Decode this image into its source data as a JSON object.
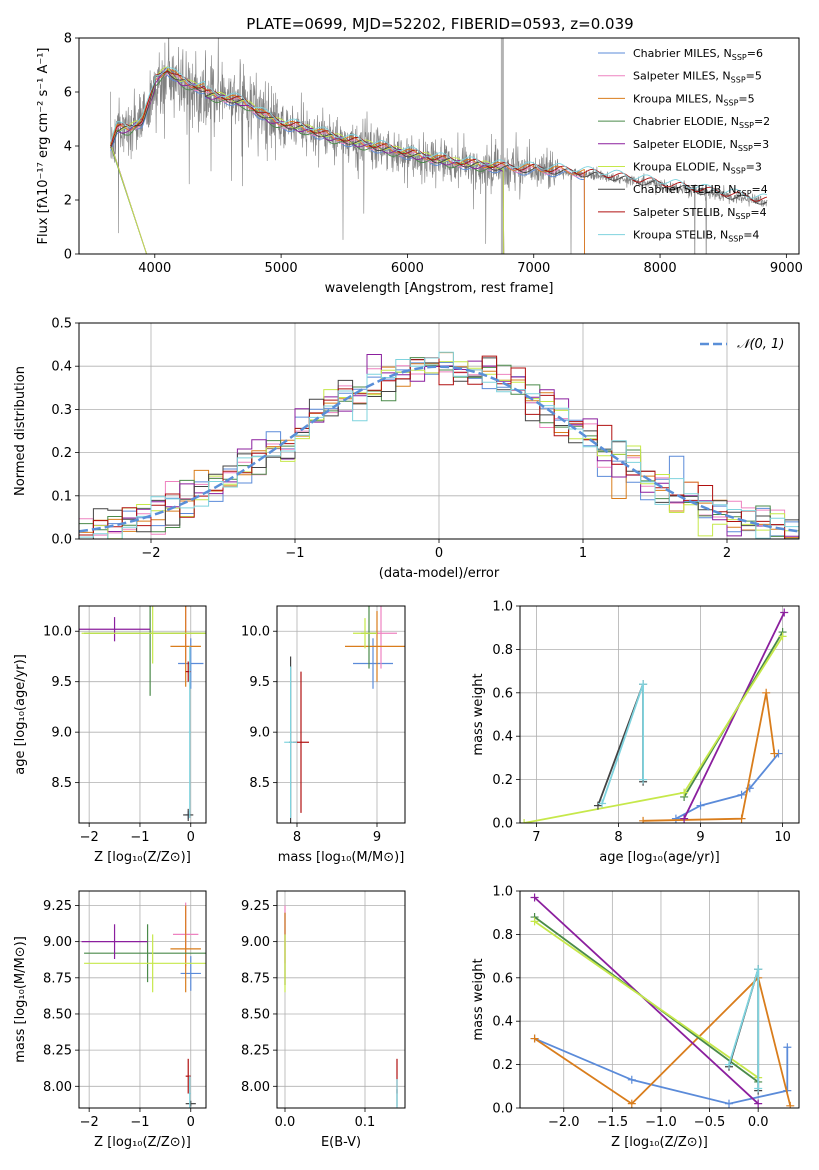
{
  "figure_title": "PLATE=0699, MJD=52202, FIBERID=0593, z=0.039",
  "colors": {
    "data_spectrum": "#808080",
    "masked": "#b3b3b3",
    "axes": "#000000",
    "grid": "#b0b0b0",
    "normal_curve": "#5a8fd8"
  },
  "chart_data": [
    {
      "id": "spectrum",
      "type": "line",
      "title": "PLATE=0699, MJD=52202, FIBERID=0593, z=0.039",
      "xlabel": "wavelength [Angstrom, rest frame]",
      "ylabel": "Flux [fλ10⁻¹⁷ erg cm⁻² s⁻¹ A⁻¹]",
      "xlim": [
        3400,
        9100
      ],
      "ylim": [
        0,
        8
      ],
      "xticks": [
        4000,
        5000,
        6000,
        7000,
        8000,
        9000
      ],
      "yticks": [
        0,
        2,
        4,
        6,
        8
      ],
      "grid": false,
      "legend_position": "top-right",
      "data_continuum": {
        "x": [
          3650,
          3700,
          3800,
          3900,
          3950,
          4000,
          4100,
          4200,
          4300,
          4400,
          4500,
          4600,
          4700,
          4800,
          4900,
          5000,
          5200,
          5400,
          5600,
          5800,
          6000,
          6200,
          6400,
          6600,
          6800,
          7000,
          7200,
          7400,
          7600,
          7800,
          8000,
          8200,
          8400,
          8600,
          8850
        ],
        "y": [
          4.0,
          4.6,
          4.6,
          4.9,
          5.5,
          6.2,
          6.6,
          6.2,
          6.0,
          5.9,
          5.8,
          5.7,
          5.6,
          5.3,
          5.0,
          4.8,
          4.6,
          4.3,
          4.1,
          3.9,
          3.7,
          3.5,
          3.35,
          3.25,
          3.15,
          3.1,
          3.05,
          2.95,
          2.85,
          2.7,
          2.55,
          2.4,
          2.25,
          2.1,
          1.9
        ]
      },
      "series": [
        {
          "name": "Chabrier MILES, N_SSP=6",
          "color": "#5b8bd9",
          "nssp": 6,
          "family": "MILES"
        },
        {
          "name": "Salpeter MILES, N_SSP=5",
          "color": "#ee82c0",
          "nssp": 5,
          "family": "MILES"
        },
        {
          "name": "Kroupa MILES, N_SSP=5",
          "color": "#d97d1c",
          "nssp": 5,
          "family": "MILES"
        },
        {
          "name": "Chabrier ELODIE, N_SSP=2",
          "color": "#4a8a4a",
          "nssp": 2,
          "family": "ELODIE"
        },
        {
          "name": "Salpeter ELODIE, N_SSP=3",
          "color": "#8b1f9e",
          "nssp": 3,
          "family": "ELODIE"
        },
        {
          "name": "Kroupa ELODIE, N_SSP=3",
          "color": "#c6e84a",
          "nssp": 3,
          "family": "ELODIE"
        },
        {
          "name": "Chabrier STELIB, N_SSP=4",
          "color": "#444444",
          "nssp": 4,
          "family": "STELIB"
        },
        {
          "name": "Salpeter STELIB, N_SSP=4",
          "color": "#b01010",
          "nssp": 4,
          "family": "STELIB"
        },
        {
          "name": "Kroupa STELIB, N_SSP=4",
          "color": "#7fd3de",
          "nssp": 4,
          "family": "STELIB"
        }
      ],
      "legend_labels": [
        {
          "model": "Chabrier MILES, N",
          "sub": "SSP",
          "tail": "=6"
        },
        {
          "model": "Salpeter MILES, N",
          "sub": "SSP",
          "tail": "=5"
        },
        {
          "model": "Kroupa MILES, N",
          "sub": "SSP",
          "tail": "=5"
        },
        {
          "model": "Chabrier ELODIE, N",
          "sub": "SSP",
          "tail": "=2"
        },
        {
          "model": "Salpeter ELODIE, N",
          "sub": "SSP",
          "tail": "=3"
        },
        {
          "model": "Kroupa ELODIE, N",
          "sub": "SSP",
          "tail": "=3"
        },
        {
          "model": "Chabrier STELIB, N",
          "sub": "SSP",
          "tail": "=4"
        },
        {
          "model": "Salpeter STELIB, N",
          "sub": "SSP",
          "tail": "=4"
        },
        {
          "model": "Kroupa STELIB, N",
          "sub": "SSP",
          "tail": "=4"
        }
      ]
    },
    {
      "id": "residuals",
      "type": "bar",
      "xlabel": "(data-model)/error",
      "ylabel": "Normed distribution",
      "xlim": [
        -2.5,
        2.5
      ],
      "ylim": [
        0,
        0.5
      ],
      "xticks": [
        -2,
        -1,
        0,
        1,
        2
      ],
      "yticks": [
        0.0,
        0.1,
        0.2,
        0.3,
        0.4,
        0.5
      ],
      "grid": true,
      "legend_position": "top-right",
      "legend_label": "𝒩(0, 1)",
      "bin_width": 0.1,
      "normal": {
        "mean": 0,
        "sigma": 1
      }
    },
    {
      "id": "age-vs-Z",
      "type": "scatter",
      "xlabel": "Z [log₁₀(Z/Z⊙)]",
      "ylabel": "age  [log₁₀(age/yr)]",
      "xlim": [
        -2.2,
        0.3
      ],
      "ylim": [
        8.1,
        10.25
      ],
      "xticks": [
        -2,
        -1,
        0
      ],
      "yticks": [
        8.5,
        9.0,
        9.5,
        10.0
      ],
      "grid": true,
      "points": [
        {
          "series": 0,
          "x": 0.0,
          "y": 9.68,
          "xerr": 0.25,
          "yerr": 0.25
        },
        {
          "series": 0,
          "x": -0.05,
          "y": 8.18,
          "xerr": 0.05,
          "yerr": 0.04
        },
        {
          "series": 1,
          "x": -0.1,
          "y": 9.98,
          "xerr": 0.3,
          "yerr": 0.28
        },
        {
          "series": 2,
          "x": -0.1,
          "y": 9.85,
          "xerr": 0.3,
          "yerr": 0.4
        },
        {
          "series": 3,
          "x": -0.8,
          "y": 9.98,
          "xerr": 1.3,
          "yerr": 0.62
        },
        {
          "series": 4,
          "x": -1.5,
          "y": 10.02,
          "xerr": 0.7,
          "yerr": 0.12
        },
        {
          "series": 5,
          "x": -0.75,
          "y": 9.98,
          "xerr": 1.4,
          "yerr": 0.3
        },
        {
          "series": 6,
          "x": -0.05,
          "y": 8.18,
          "xerr": 0.1,
          "yerr": 0.06
        },
        {
          "series": 7,
          "x": -0.05,
          "y": 9.6,
          "xerr": 0.05,
          "yerr": 0.1
        },
        {
          "series": 8,
          "x": -0.02,
          "y": 9.0,
          "xerr": 0.02,
          "yerr": 0.85
        }
      ]
    },
    {
      "id": "age-vs-mass",
      "type": "scatter",
      "xlabel": "mass [log₁₀(M/M⊙)]",
      "ylabel": "",
      "xlim": [
        7.75,
        9.35
      ],
      "ylim": [
        8.1,
        10.25
      ],
      "xticks": [
        8,
        9
      ],
      "yticks": [
        8.5,
        9.0,
        9.5,
        10.0
      ],
      "grid": true,
      "points": [
        {
          "series": 0,
          "x": 8.95,
          "y": 9.68,
          "xerr": 0.25,
          "yerr": 0.25
        },
        {
          "series": 1,
          "x": 9.05,
          "y": 9.98,
          "xerr": 0.2,
          "yerr": 0.35
        },
        {
          "series": 2,
          "x": 9.0,
          "y": 9.85,
          "xerr": 0.4,
          "yerr": 0.35
        },
        {
          "series": 3,
          "x": 8.9,
          "y": 9.98,
          "xerr": 0.1,
          "yerr": 0.35
        },
        {
          "series": 5,
          "x": 8.85,
          "y": 9.98,
          "xerr": 0.15,
          "yerr": 0.15
        },
        {
          "series": 6,
          "x": 7.92,
          "y": 8.9,
          "xerr": 0.02,
          "yerr": 0.85
        },
        {
          "series": 7,
          "x": 8.05,
          "y": 8.9,
          "xerr": 0.1,
          "yerr": 0.7
        },
        {
          "series": 8,
          "x": 7.92,
          "y": 8.9,
          "xerr": 0.08,
          "yerr": 0.75
        }
      ]
    },
    {
      "id": "weight-vs-age",
      "type": "line",
      "xlabel": "age  [log₁₀(age/yr)]",
      "ylabel": "mass weight",
      "xlim": [
        6.8,
        10.2
      ],
      "ylim": [
        0,
        1
      ],
      "xticks": [
        7,
        8,
        9,
        10
      ],
      "yticks": [
        0.0,
        0.2,
        0.4,
        0.6,
        0.8,
        1.0
      ],
      "grid": true,
      "lines": [
        {
          "series": 0,
          "x": [
            8.7,
            9.0,
            9.5,
            9.6,
            9.95
          ],
          "y": [
            0.02,
            0.08,
            0.13,
            0.16,
            0.32
          ]
        },
        {
          "series": 2,
          "x": [
            8.3,
            9.5,
            9.8,
            9.9
          ],
          "y": [
            0.01,
            0.02,
            0.6,
            0.32
          ]
        },
        {
          "series": 4,
          "x": [
            8.8,
            10.02
          ],
          "y": [
            0.02,
            0.97
          ]
        },
        {
          "series": 3,
          "x": [
            8.8,
            10.0
          ],
          "y": [
            0.12,
            0.88
          ]
        },
        {
          "series": 5,
          "x": [
            6.85,
            8.8,
            10.0
          ],
          "y": [
            0.0,
            0.14,
            0.86
          ]
        },
        {
          "series": 6,
          "x": [
            7.75,
            8.3,
            8.3
          ],
          "y": [
            0.08,
            0.64,
            0.19
          ]
        },
        {
          "series": 8,
          "x": [
            7.8,
            8.3,
            8.3
          ],
          "y": [
            0.09,
            0.64,
            0.2
          ]
        }
      ]
    },
    {
      "id": "mass-vs-Z",
      "type": "scatter",
      "xlabel": "Z [log₁₀(Z/Z⊙)]",
      "ylabel": "mass [log₁₀(M/M⊙)]",
      "xlim": [
        -2.2,
        0.3
      ],
      "ylim": [
        7.85,
        9.35
      ],
      "xticks": [
        -2,
        -1,
        0
      ],
      "yticks": [
        8.0,
        8.25,
        8.5,
        8.75,
        9.0,
        9.25
      ],
      "grid": true,
      "points": [
        {
          "series": 0,
          "x": 0.0,
          "y": 8.78,
          "xerr": 0.2,
          "yerr": 0.12
        },
        {
          "series": 1,
          "x": -0.1,
          "y": 9.05,
          "xerr": 0.25,
          "yerr": 0.22
        },
        {
          "series": 2,
          "x": -0.1,
          "y": 8.95,
          "xerr": 0.3,
          "yerr": 0.3
        },
        {
          "series": 3,
          "x": -0.85,
          "y": 8.92,
          "xerr": 1.25,
          "yerr": 0.2
        },
        {
          "series": 4,
          "x": -1.5,
          "y": 9.0,
          "xerr": 0.65,
          "yerr": 0.12
        },
        {
          "series": 5,
          "x": -0.75,
          "y": 8.85,
          "xerr": 1.35,
          "yerr": 0.2
        },
        {
          "series": 6,
          "x": 0.0,
          "y": 7.88,
          "xerr": 0.1,
          "yerr": 0.02
        },
        {
          "series": 7,
          "x": -0.05,
          "y": 8.07,
          "xerr": 0.05,
          "yerr": 0.12
        },
        {
          "series": 8,
          "x": -0.02,
          "y": 7.95,
          "xerr": 0.02,
          "yerr": 0.12
        }
      ]
    },
    {
      "id": "mass-vs-EBV",
      "type": "scatter",
      "xlabel": "E(B-V)",
      "ylabel": "",
      "xlim": [
        -0.01,
        0.15
      ],
      "ylim": [
        7.85,
        9.35
      ],
      "xticks": [
        0.0,
        0.1
      ],
      "yticks": [
        8.0,
        8.25,
        8.5,
        8.75,
        9.0,
        9.25
      ],
      "grid": true,
      "points": [
        {
          "series": 0,
          "x": 0.0,
          "y": 8.95,
          "xerr": 0.0,
          "yerr": 0.25
        },
        {
          "series": 1,
          "x": 0.0,
          "y": 9.05,
          "xerr": 0.0,
          "yerr": 0.2
        },
        {
          "series": 2,
          "x": 0.0,
          "y": 8.95,
          "xerr": 0.0,
          "yerr": 0.25
        },
        {
          "series": 5,
          "x": 0.0,
          "y": 8.85,
          "xerr": 0.0,
          "yerr": 0.2
        },
        {
          "series": 6,
          "x": 0.14,
          "y": 7.92,
          "xerr": 0.0,
          "yerr": 0.06
        },
        {
          "series": 7,
          "x": 0.14,
          "y": 8.07,
          "xerr": 0.0,
          "yerr": 0.12
        },
        {
          "series": 8,
          "x": 0.14,
          "y": 7.95,
          "xerr": 0.0,
          "yerr": 0.1
        }
      ]
    },
    {
      "id": "weight-vs-Z",
      "type": "line",
      "xlabel": "Z [log₁₀(Z/Z⊙)]",
      "ylabel": "mass weight",
      "xlim": [
        -2.45,
        0.42
      ],
      "ylim": [
        0,
        1
      ],
      "xticks": [
        -2.0,
        -1.5,
        -1.0,
        -0.5,
        0.0
      ],
      "yticks": [
        0.0,
        0.2,
        0.4,
        0.6,
        0.8,
        1.0
      ],
      "grid": true,
      "lines": [
        {
          "series": 0,
          "x": [
            -2.3,
            -1.3,
            -0.3,
            0.3,
            0.3
          ],
          "y": [
            0.32,
            0.13,
            0.02,
            0.08,
            0.28
          ]
        },
        {
          "series": 2,
          "x": [
            -2.3,
            -1.3,
            0.0,
            0.33
          ],
          "y": [
            0.32,
            0.02,
            0.6,
            0.01
          ]
        },
        {
          "series": 4,
          "x": [
            -2.3,
            0.0
          ],
          "y": [
            0.97,
            0.02
          ]
        },
        {
          "series": 3,
          "x": [
            -2.3,
            0.0
          ],
          "y": [
            0.88,
            0.12
          ]
        },
        {
          "series": 5,
          "x": [
            -2.3,
            0.0
          ],
          "y": [
            0.86,
            0.14
          ]
        },
        {
          "series": 6,
          "x": [
            -0.3,
            0.0,
            0.0
          ],
          "y": [
            0.19,
            0.64,
            0.08
          ]
        },
        {
          "series": 8,
          "x": [
            -0.3,
            0.0,
            0.0
          ],
          "y": [
            0.2,
            0.64,
            0.09
          ]
        }
      ]
    }
  ]
}
